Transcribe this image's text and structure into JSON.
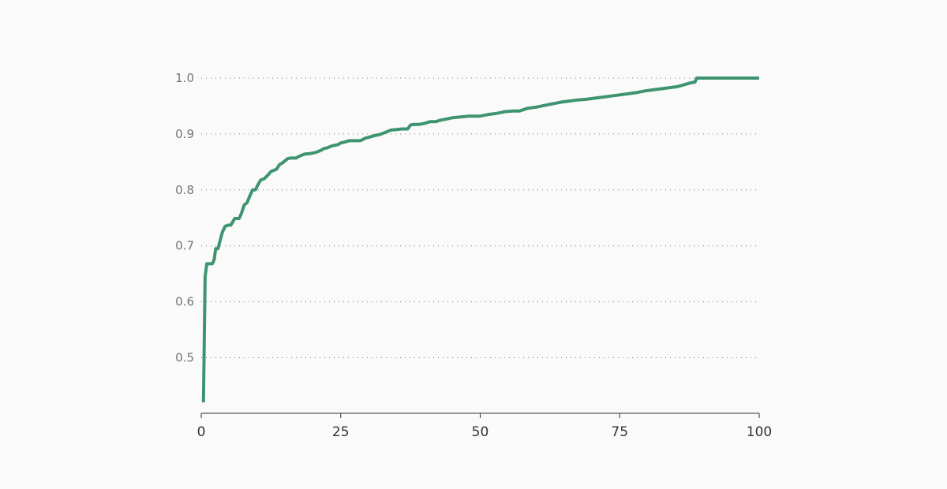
{
  "chart_data": {
    "type": "line",
    "title": "",
    "xlabel": "",
    "ylabel": "",
    "xlim": [
      0,
      100
    ],
    "ylim": [
      0.4,
      1.0
    ],
    "x_ticks": [
      0,
      25,
      50,
      75,
      100
    ],
    "y_ticks": [
      0.5,
      0.6,
      0.7,
      0.8,
      0.9,
      1.0
    ],
    "x_tick_labels": [
      "0",
      "25",
      "50",
      "75",
      "100"
    ],
    "y_tick_labels": [
      "0.5",
      "0.6",
      "0.7",
      "0.8",
      "0.9",
      "1.0"
    ],
    "grid": "horizontal-dotted",
    "line_color": "#3f9470",
    "series": [
      {
        "x": [
          0.4,
          0.7,
          1.0,
          1.5,
          2.0,
          2.3,
          2.6,
          3.0,
          3.4,
          3.8,
          4.3,
          4.8,
          5.3,
          6.0,
          6.8,
          7.2,
          7.7,
          8.2,
          8.7,
          9.2,
          9.7,
          10.2,
          10.7,
          11.3,
          12.0,
          12.5,
          13.0,
          13.5,
          14.0,
          14.5,
          15.0,
          15.5,
          16.0,
          16.5,
          17.0,
          17.5,
          18.0,
          18.5,
          19.5,
          20.5,
          21.5,
          22.0,
          22.5,
          23.0,
          23.5,
          24.5,
          25.0,
          25.5,
          26.5,
          27.5,
          28.5,
          29.5,
          30.0,
          31.0,
          32.0,
          33.0,
          34.0,
          35.0,
          36.0,
          37.0,
          37.5,
          38.0,
          39.0,
          40.0,
          41.0,
          42.0,
          43.0,
          44.0,
          45.0,
          46.0,
          47.0,
          48.0,
          50.0,
          51.5,
          53.0,
          54.5,
          56.0,
          57.0,
          58.5,
          60.0,
          61.5,
          63.0,
          64.5,
          66.0,
          67.5,
          69.0,
          70.5,
          72.0,
          73.5,
          75.0,
          76.5,
          78.0,
          79.5,
          81.0,
          82.5,
          84.0,
          85.5,
          86.5,
          87.5,
          88.5,
          88.8,
          90,
          92,
          95,
          98,
          100
        ],
        "y": [
          0.42,
          0.645,
          0.668,
          0.668,
          0.668,
          0.675,
          0.695,
          0.695,
          0.71,
          0.725,
          0.735,
          0.737,
          0.737,
          0.749,
          0.749,
          0.758,
          0.773,
          0.777,
          0.789,
          0.8,
          0.8,
          0.81,
          0.818,
          0.82,
          0.827,
          0.833,
          0.835,
          0.837,
          0.845,
          0.848,
          0.852,
          0.856,
          0.857,
          0.857,
          0.857,
          0.86,
          0.862,
          0.864,
          0.865,
          0.867,
          0.871,
          0.874,
          0.875,
          0.877,
          0.879,
          0.881,
          0.884,
          0.885,
          0.888,
          0.888,
          0.888,
          0.893,
          0.894,
          0.897,
          0.899,
          0.903,
          0.907,
          0.908,
          0.909,
          0.909,
          0.916,
          0.917,
          0.917,
          0.919,
          0.922,
          0.922,
          0.925,
          0.927,
          0.929,
          0.93,
          0.931,
          0.932,
          0.932,
          0.935,
          0.937,
          0.94,
          0.941,
          0.941,
          0.946,
          0.948,
          0.951,
          0.954,
          0.957,
          0.959,
          0.961,
          0.962,
          0.964,
          0.966,
          0.968,
          0.97,
          0.972,
          0.974,
          0.977,
          0.979,
          0.981,
          0.983,
          0.985,
          0.988,
          0.991,
          0.993,
          1.0,
          1.0,
          1.0,
          1.0,
          1.0,
          1.0
        ]
      }
    ]
  }
}
